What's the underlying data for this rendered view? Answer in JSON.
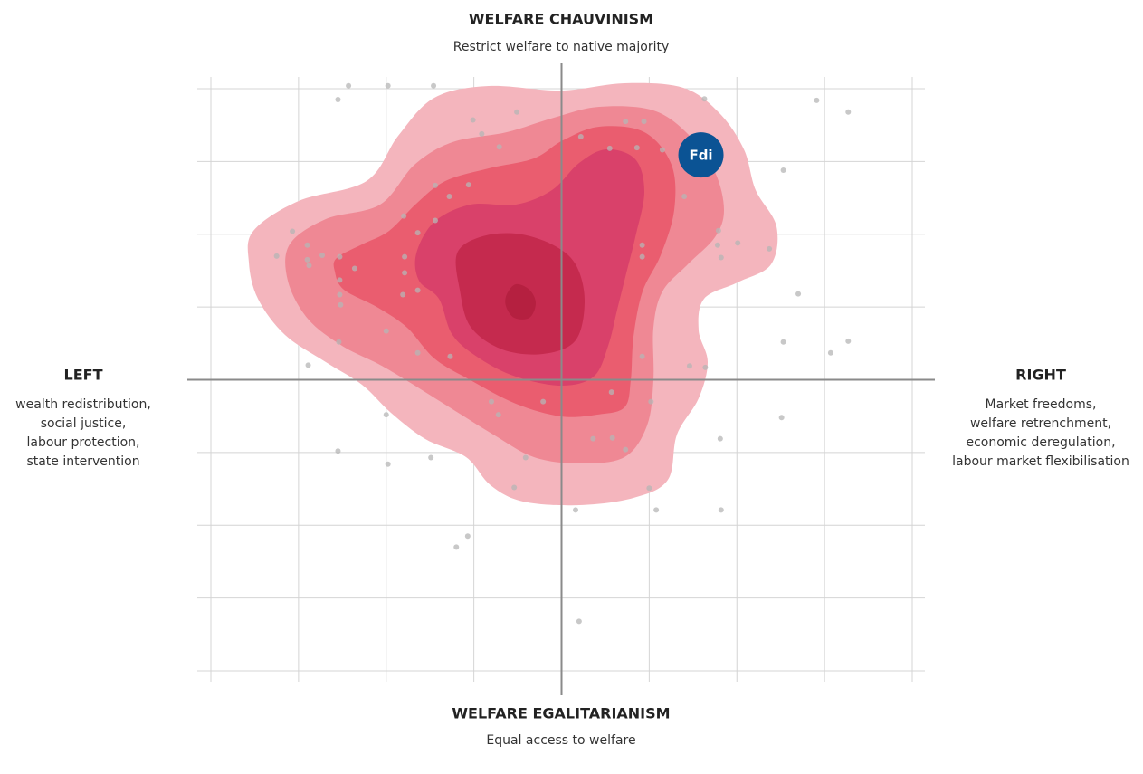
{
  "chart_data": {
    "type": "scatter",
    "top": {
      "title": "WELFARE CHAUVINISM",
      "subtitle": "Restrict welfare to native majority"
    },
    "bottom": {
      "title": "WELFARE EGALITARIANISM",
      "subtitle": "Equal access to welfare"
    },
    "left": {
      "title": "LEFT",
      "lines": [
        "wealth redistribution,",
        "social justice,",
        "labour protection,",
        "state intervention"
      ]
    },
    "right": {
      "title": "RIGHT",
      "lines": [
        "Market freedoms,",
        "welfare retrenchment,",
        "economic deregulation,",
        "labour market flexibilisation"
      ]
    },
    "xlim": [
      -4,
      4
    ],
    "ylim": [
      -4,
      4
    ],
    "xticks": [
      -4,
      -3,
      -2,
      -1,
      0,
      1,
      2,
      3,
      4
    ],
    "yticks": [
      -4,
      -3,
      -2,
      -1,
      0,
      1,
      2,
      3,
      4
    ],
    "grid": true,
    "color": "#b5b5b5",
    "x": [
      -2.43,
      -1.98,
      -1.46,
      -2.55,
      1.63,
      2.91,
      3.27,
      -0.51,
      -1.01,
      -0.91,
      -0.71,
      0.22,
      0.73,
      0.94,
      0.55,
      0.86,
      1.15,
      2.53,
      1.4,
      -1.44,
      -1.06,
      -1.28,
      -1.8,
      -1.44,
      -1.64,
      -3.07,
      -3.25,
      -2.9,
      -2.73,
      -2.9,
      -2.88,
      -2.53,
      -2.36,
      -1.79,
      -1.79,
      -2.53,
      -2.53,
      -2.52,
      -1.81,
      -1.64,
      -2.0,
      -2.54,
      -2.89,
      -1.64,
      -1.27,
      0.92,
      0.92,
      1.79,
      1.78,
      1.82,
      2.01,
      2.37,
      2.7,
      2.53,
      3.27,
      3.07,
      0.92,
      1.46,
      1.64,
      -0.8,
      -0.72,
      -0.21,
      0.57,
      1.02,
      2.51,
      -2.0,
      0.36,
      0.58,
      0.73,
      1.81,
      -2.55,
      -1.98,
      -1.49,
      -0.41,
      -0.54,
      1.0,
      0.16,
      1.08,
      1.82,
      -1.07,
      -1.2,
      0.2
    ],
    "y": [
      4.04,
      4.04,
      4.04,
      3.85,
      3.86,
      3.84,
      3.68,
      3.68,
      3.57,
      3.38,
      3.2,
      3.34,
      3.55,
      3.55,
      3.18,
      3.19,
      3.16,
      2.88,
      2.52,
      2.67,
      2.68,
      2.52,
      2.25,
      2.19,
      2.02,
      2.04,
      1.7,
      1.85,
      1.71,
      1.65,
      1.57,
      1.69,
      1.53,
      1.69,
      1.47,
      1.37,
      1.17,
      1.03,
      1.17,
      1.23,
      0.67,
      0.52,
      0.2,
      0.37,
      0.32,
      1.85,
      1.69,
      2.05,
      1.85,
      1.68,
      1.88,
      1.8,
      1.18,
      0.52,
      0.53,
      0.37,
      0.32,
      0.19,
      0.17,
      -0.3,
      -0.48,
      -0.3,
      -0.17,
      -0.3,
      -0.52,
      -0.48,
      -0.81,
      -0.8,
      -0.96,
      -0.81,
      -0.98,
      -1.16,
      -1.07,
      -1.07,
      -1.48,
      -1.49,
      -1.79,
      -1.79,
      -1.79,
      -2.15,
      -2.3,
      -3.32
    ],
    "highlight": {
      "label": "Fdi",
      "x": 1.59,
      "y": 3.09,
      "color": "#0b5394"
    }
  }
}
